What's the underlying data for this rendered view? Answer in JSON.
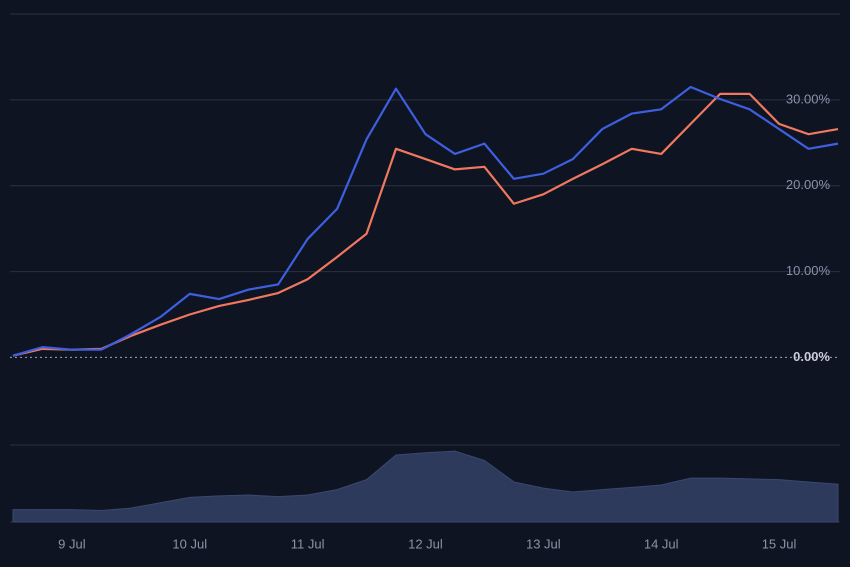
{
  "chart_data": {
    "type": "line",
    "x": [
      8.5,
      8.75,
      9,
      9.25,
      9.5,
      9.75,
      10,
      10.25,
      10.5,
      10.75,
      11,
      11.25,
      11.5,
      11.75,
      12,
      12.25,
      12.5,
      12.75,
      13,
      13.25,
      13.5,
      13.75,
      14,
      14.25,
      14.5,
      14.75,
      15,
      15.25,
      15.5
    ],
    "series": [
      {
        "color": "#3d5fe0",
        "values": [
          0.2,
          1.2,
          0.9,
          0.9,
          2.7,
          4.7,
          7.4,
          6.8,
          7.9,
          8.5,
          13.8,
          17.3,
          25.4,
          31.3,
          26.0,
          23.7,
          24.9,
          20.8,
          21.4,
          23.1,
          26.6,
          28.4,
          28.9,
          31.5,
          30.1,
          28.9,
          26.6,
          24.3,
          24.9
        ]
      },
      {
        "color": "#f07860",
        "values": [
          0.2,
          1.0,
          0.9,
          1.0,
          2.5,
          3.8,
          5.0,
          6.0,
          6.7,
          7.5,
          9.1,
          11.7,
          14.4,
          24.3,
          23.1,
          21.9,
          22.2,
          17.9,
          19.0,
          20.8,
          22.5,
          24.3,
          23.7,
          27.2,
          30.7,
          30.7,
          27.2,
          26.0,
          26.6
        ]
      }
    ],
    "volume": {
      "color": "#2e3a5c",
      "ylim": [
        0,
        100
      ],
      "values": [
        16,
        16,
        16,
        15,
        18,
        25,
        32,
        34,
        35,
        33,
        35,
        42,
        55,
        87,
        90,
        92,
        80,
        52,
        44,
        39,
        42,
        45,
        48,
        57,
        57,
        56,
        55,
        52,
        49
      ]
    },
    "xlim": [
      8.475,
      15.517
    ],
    "xticks": [
      {
        "value": 9,
        "label": "9 Jul"
      },
      {
        "value": 10,
        "label": "10 Jul"
      },
      {
        "value": 11,
        "label": "11 Jul"
      },
      {
        "value": 12,
        "label": "12 Jul"
      },
      {
        "value": 13,
        "label": "13 Jul"
      },
      {
        "value": 14,
        "label": "14 Jul"
      },
      {
        "value": 15,
        "label": "15 Jul"
      }
    ],
    "ylim": [
      -10.2,
      40
    ],
    "yticks": [
      {
        "value": 0,
        "label": "0.00%"
      },
      {
        "value": 10,
        "label": "10.00%"
      },
      {
        "value": 20,
        "label": "20.00%"
      },
      {
        "value": 30,
        "label": "30.00%"
      }
    ],
    "grid": true
  }
}
